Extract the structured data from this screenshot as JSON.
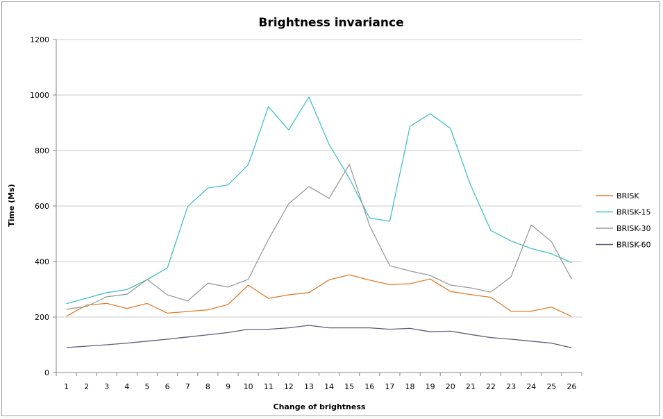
{
  "chart_data": {
    "type": "line",
    "title": "Brightness invariance",
    "xlabel": "Change of brightness",
    "ylabel": "Time (Ms)",
    "ylim": [
      0,
      1200
    ],
    "yticks": [
      0,
      200,
      400,
      600,
      800,
      1000,
      1200
    ],
    "categories": [
      1,
      2,
      3,
      4,
      5,
      6,
      7,
      8,
      9,
      10,
      11,
      12,
      13,
      14,
      15,
      16,
      17,
      18,
      19,
      20,
      21,
      22,
      23,
      24,
      25,
      26
    ],
    "grid": true,
    "legend_position": "right",
    "series": [
      {
        "name": "BRISK",
        "color": "#E07B2A",
        "values": [
          203,
          243,
          249,
          231,
          249,
          214,
          220,
          226,
          245,
          315,
          267,
          280,
          288,
          334,
          352,
          333,
          317,
          320,
          337,
          292,
          281,
          271,
          221,
          221,
          236,
          202
        ]
      },
      {
        "name": "BRISK-15",
        "color": "#3FC0C9",
        "values": [
          248,
          268,
          288,
          299,
          335,
          377,
          598,
          665,
          676,
          749,
          958,
          874,
          993,
          822,
          700,
          557,
          545,
          887,
          933,
          880,
          675,
          512,
          474,
          447,
          428,
          396
        ]
      },
      {
        "name": "BRISK-30",
        "color": "#9A9A9A",
        "values": [
          228,
          238,
          273,
          282,
          335,
          280,
          258,
          322,
          308,
          336,
          480,
          608,
          670,
          628,
          750,
          530,
          385,
          366,
          350,
          315,
          305,
          290,
          345,
          532,
          472,
          337
        ]
      },
      {
        "name": "BRISK-60",
        "color": "#5A5A78",
        "values": [
          90,
          95,
          100,
          106,
          113,
          120,
          128,
          136,
          144,
          156,
          156,
          161,
          170,
          161,
          161,
          161,
          156,
          159,
          147,
          149,
          137,
          126,
          120,
          113,
          106,
          89
        ]
      }
    ]
  }
}
